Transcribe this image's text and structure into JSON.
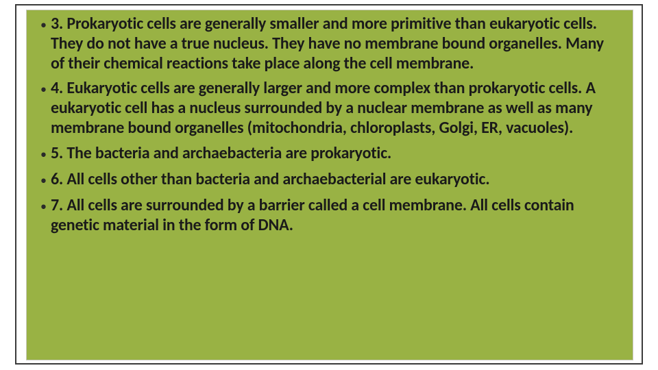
{
  "slide": {
    "background_color": "#ffffff",
    "frame_border_color": "#3a3a3a",
    "panel_background": "#99b244",
    "panel_border": "#c8c8c0",
    "text_color": "#1a1a1a",
    "font_family": "Calibri/Segoe UI",
    "font_size_pt": 20,
    "font_weight": "semibold",
    "bullets": [
      {
        "text": "3. Prokaryotic cells are generally smaller and more primitive than eukaryotic cells.  They do not have a true nucleus.  They have no membrane bound organelles.  Many of their chemical reactions take place along the cell membrane."
      },
      {
        "text": "4.  Eukaryotic cells are generally larger and more complex than prokaryotic cells.  A eukaryotic cell has a nucleus surrounded by a nuclear membrane as well as many membrane bound organelles (mitochondria, chloroplasts, Golgi, ER, vacuoles)."
      },
      {
        "text": "5. The bacteria and archaebacteria are prokaryotic."
      },
      {
        "text": "6.  All cells other than bacteria and archaebacterial are eukaryotic."
      },
      {
        "text": "7.  All cells are surrounded by a barrier called a cell membrane.  All cells contain genetic material in the form of DNA."
      }
    ]
  }
}
